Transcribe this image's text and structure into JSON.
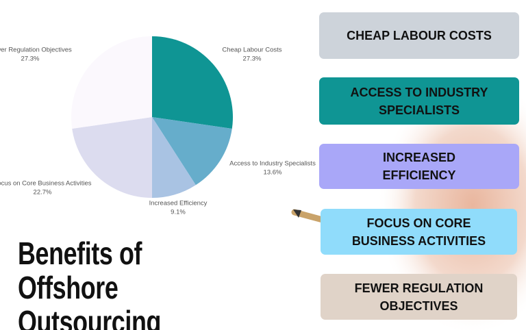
{
  "chart_data": {
    "type": "pie",
    "categories": [
      "Cheap Labour Costs",
      "Access to Industry Specialists",
      "Increased Efficiency",
      "Focus on Core Business Activities",
      "Fewer Regulation Objectives"
    ],
    "values": [
      27.3,
      13.6,
      9.1,
      22.7,
      27.3
    ],
    "value_labels": [
      "27.3%",
      "13.6%",
      "9.1%",
      "22.7%",
      "27.3%"
    ],
    "colors": [
      "#0f9594",
      "#66adcb",
      "#a9c3e3",
      "#dcdcef",
      "#fbf8fd"
    ]
  },
  "title": "Benefits of Offshore Outsourcing",
  "cards": [
    {
      "text": "CHEAP LABOUR COSTS",
      "color": "#cdd3da"
    },
    {
      "text": "ACCESS TO INDUSTRY SPECIALISTS",
      "color": "#0f9594"
    },
    {
      "text": "INCREASED EFFICIENCY",
      "color": "#a9a7f8"
    },
    {
      "text": "FOCUS ON CORE BUSINESS ACTIVITIES",
      "color": "#90dcfb"
    },
    {
      "text": "FEWER REGULATION OBJECTIVES",
      "color": "#e0d3c8"
    }
  ]
}
